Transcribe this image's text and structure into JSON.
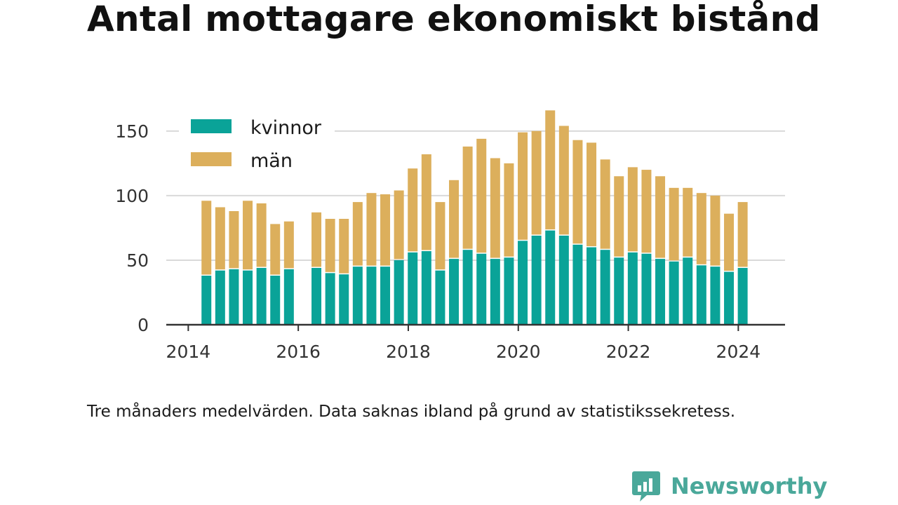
{
  "title": "Antal mottagare ekonomiskt bistånd",
  "note": "Tre månaders medelvärden. Data saknas ibland på grund av statistikssekretess.",
  "brand": {
    "name": "Newsworthy",
    "color": "#4aa89a",
    "icon": "newsworthy-speech-bar-icon"
  },
  "colors": {
    "kvinnor": "#0aa398",
    "man": "#dcaf5c",
    "grid": "#d9d9d9",
    "axis": "#333333"
  },
  "chart_data": {
    "type": "bar",
    "stacked": true,
    "title": "Antal mottagare ekonomiskt bistånd",
    "xlabel": "",
    "ylabel": "",
    "ylim": [
      0,
      170
    ],
    "yticks": [
      0,
      50,
      100,
      150
    ],
    "xlim": [
      2013.6,
      2024.85
    ],
    "xticks": [
      "2014",
      "2016",
      "2018",
      "2020",
      "2022",
      "2024"
    ],
    "grid": true,
    "legend": "top-left",
    "x": [
      2014.33,
      2014.58,
      2014.83,
      2015.08,
      2015.33,
      2015.58,
      2015.83,
      2016.33,
      2016.58,
      2016.83,
      2017.08,
      2017.33,
      2017.58,
      2017.83,
      2018.08,
      2018.33,
      2018.58,
      2018.83,
      2019.08,
      2019.33,
      2019.58,
      2019.83,
      2020.08,
      2020.33,
      2020.58,
      2020.83,
      2021.08,
      2021.33,
      2021.58,
      2021.83,
      2022.08,
      2022.33,
      2022.58,
      2022.83,
      2023.08,
      2023.33,
      2023.58,
      2023.83,
      2024.08
    ],
    "series": [
      {
        "name": "kvinnor",
        "values": [
          38,
          42,
          43,
          42,
          44,
          38,
          43,
          44,
          40,
          39,
          45,
          45,
          45,
          50,
          56,
          57,
          42,
          51,
          58,
          55,
          51,
          52,
          65,
          69,
          73,
          69,
          62,
          60,
          58,
          52,
          56,
          55,
          51,
          49,
          52,
          46,
          45,
          41,
          44
        ]
      },
      {
        "name": "män",
        "values": [
          58,
          49,
          45,
          54,
          50,
          40,
          37,
          43,
          42,
          43,
          50,
          57,
          56,
          54,
          65,
          75,
          53,
          61,
          80,
          89,
          78,
          73,
          84,
          81,
          93,
          85,
          81,
          81,
          70,
          63,
          66,
          65,
          64,
          57,
          54,
          56,
          55,
          45,
          51
        ]
      }
    ]
  }
}
